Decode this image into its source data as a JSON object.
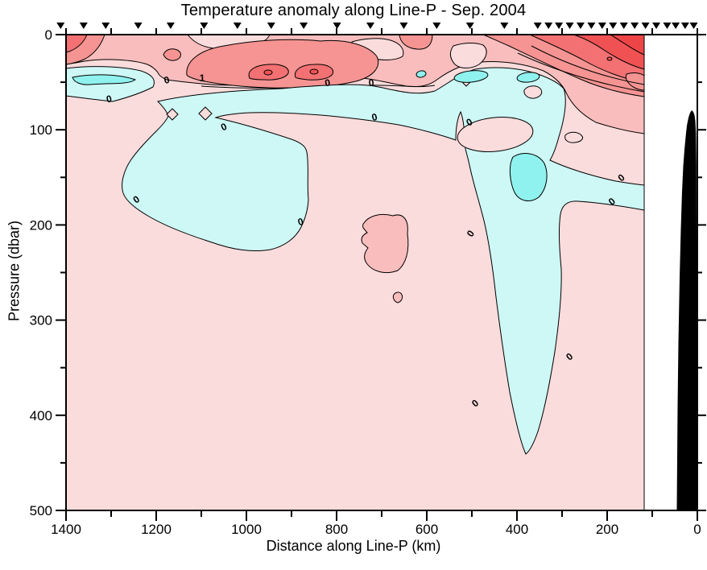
{
  "title": "Temperature anomaly along Line-P - Sep. 2004",
  "axes": {
    "x": {
      "label": "Distance along Line-P (km)",
      "min": 0,
      "max": 1400,
      "reversed": true,
      "major_ticks": [
        1400,
        1200,
        1000,
        800,
        600,
        400,
        200,
        0
      ],
      "minor_ticks": [
        1300,
        1100,
        900,
        700,
        500,
        300,
        100
      ],
      "top_ticks": [
        1400,
        1300,
        1200,
        1100,
        1000,
        900,
        800,
        700,
        600,
        500,
        400,
        300,
        200,
        100,
        0
      ]
    },
    "y": {
      "label": "Pressure (dbar)",
      "min": 0,
      "max": 500,
      "inverted": true,
      "major_ticks": [
        0,
        100,
        200,
        300,
        400,
        500
      ],
      "minor_ticks": [
        50,
        150,
        250,
        350,
        450
      ]
    }
  },
  "stations_km": [
    1412,
    1361,
    1312,
    1240,
    1168,
    1094,
    1020,
    945,
    873,
    799,
    725,
    651,
    578,
    504,
    428,
    354,
    330,
    307,
    283,
    259,
    235,
    211,
    187,
    163,
    139,
    115,
    91,
    67,
    48,
    27,
    8
  ],
  "colors": {
    "background": "#FFFFFF",
    "axis": "#000000",
    "contour_line": "#000000",
    "bathymetry": "#000000",
    "pink0": "#FBDCDC",
    "salmon": "#F9BDBD",
    "red1": "#F59492",
    "red15": "#F37173",
    "red2": "#F05254",
    "red25": "#ED4547",
    "cyan0": "#CDF8F6",
    "cyan1": "#90F2EE"
  },
  "chart_data": {
    "type": "filled-contour-section",
    "title": "Temperature anomaly along Line-P - Sep. 2004",
    "xlabel": "Distance along Line-P (km)",
    "ylabel": "Pressure (dbar)",
    "xlim": [
      1400,
      0
    ],
    "ylim": [
      0,
      500
    ],
    "x_axis_reversed": true,
    "y_axis_inverted": true,
    "grid": false,
    "legend": "none",
    "contour_interval_degC": 0.5,
    "contour_levels_degC": [
      -1,
      -0.5,
      0,
      0.5,
      1,
      1.5,
      2
    ],
    "data_extent_km": [
      1420,
      120
    ],
    "contour_labels": [
      {
        "text": "0",
        "km": 1303,
        "dbar": 71,
        "rot": -12
      },
      {
        "text": "0",
        "km": 1175,
        "dbar": 51,
        "rot": -14
      },
      {
        "text": "1",
        "km": 1098,
        "dbar": 49,
        "rot": 0
      },
      {
        "text": "0",
        "km": 819,
        "dbar": 54,
        "rot": -8
      },
      {
        "text": "0",
        "km": 722,
        "dbar": 54,
        "rot": -8
      },
      {
        "text": "0",
        "km": 714,
        "dbar": 90,
        "rot": -15
      },
      {
        "text": "0",
        "km": 1047,
        "dbar": 100,
        "rot": -25
      },
      {
        "text": "0",
        "km": 1240,
        "dbar": 176,
        "rot": -35
      },
      {
        "text": "0",
        "km": 878,
        "dbar": 200,
        "rot": -15
      },
      {
        "text": "0",
        "km": 502,
        "dbar": 95,
        "rot": -30
      },
      {
        "text": "0",
        "km": 497,
        "dbar": 211,
        "rot": -55
      },
      {
        "text": "0",
        "km": 488,
        "dbar": 390,
        "rot": -40
      },
      {
        "text": "0",
        "km": 279,
        "dbar": 341,
        "rot": -40
      },
      {
        "text": "0",
        "km": 185,
        "dbar": 178,
        "rot": -40
      },
      {
        "text": "0",
        "km": 164,
        "dbar": 153,
        "rot": -40
      }
    ],
    "features": [
      {
        "name": "surface-warm-band",
        "sign": "+",
        "range": "0-40 dbar across whole section, anomaly 0.5 to >2 C"
      },
      {
        "name": "strong-warm-core-offshore",
        "sign": "+",
        "range": "~900-1100 km, 25-45 dbar, >1.5 C with 2 C cores"
      },
      {
        "name": "strong-warm-core-coastal",
        "sign": "+",
        "range": "0-250 km, 0-40 dbar, >2 C at top right corner"
      },
      {
        "name": "subsurface-cool-band",
        "sign": "-",
        "range": "~35-70 dbar along most of section, 0 to -1 C"
      },
      {
        "name": "offshore-cool-pool",
        "sign": "-",
        "range": "850-1300 km, 75-235 dbar"
      },
      {
        "name": "inshore-cool-column",
        "sign": "-",
        "range": "250-500 km, reaching down to ~440 dbar, core < -1 C near 390 km / 140 dbar"
      },
      {
        "name": "isolated-warm-patch",
        "sign": "+",
        "range": "~650-740 km, 190-250 dbar, 0 to 0.5 C"
      },
      {
        "name": "bathymetry",
        "sign": "bottom",
        "range": "black seafloor profile inshore of ~60 km, shallowest ~80 dbar"
      }
    ]
  }
}
